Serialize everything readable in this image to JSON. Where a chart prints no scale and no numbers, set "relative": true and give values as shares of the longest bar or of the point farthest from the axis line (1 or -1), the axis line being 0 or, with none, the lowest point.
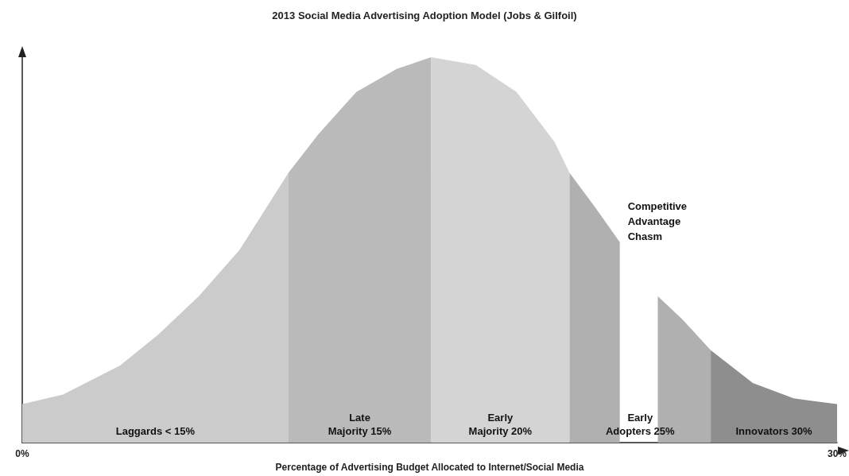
{
  "chart_data": {
    "type": "area",
    "title": "2013 Social Media Advertising Adoption Model (Jobs & Gilfoil)",
    "xlabel": "Percentage of Advertising Budget Allocated to Internet/Social Media",
    "relative": true,
    "legend": false,
    "grid": false,
    "xlim": [
      0,
      30
    ],
    "xticks": [
      {
        "value": 0,
        "label": "0%"
      },
      {
        "value": 30,
        "label": "30%"
      }
    ],
    "series": [
      {
        "name": "Laggards < 15%",
        "color": "#cbcbcb",
        "x": [
          0,
          1.5,
          3.6,
          5,
          6.5,
          8,
          9.8
        ],
        "values": [
          0.1,
          0.125,
          0.2,
          0.28,
          0.38,
          0.5,
          0.7
        ]
      },
      {
        "name": "Late\nMajority 15%",
        "color": "#bababa",
        "x": [
          9.8,
          10.9,
          12.3,
          13.8,
          15.05
        ],
        "values": [
          0.7,
          0.8,
          0.91,
          0.97,
          1
        ]
      },
      {
        "name": "Early\nMajority 20%",
        "color": "#d4d4d4",
        "x": [
          15.05,
          16.7,
          18.2,
          19.6,
          20.15
        ],
        "values": [
          1,
          0.98,
          0.91,
          0.78,
          0.7
        ]
      },
      {
        "name": "Early\nAdopters 25%",
        "color": "#b0b0b0",
        "x": [
          20.15,
          21.1,
          22,
          22.7,
          23.4,
          24.3,
          25.35
        ],
        "values": [
          0.7,
          0.61,
          0.52,
          null,
          0.38,
          0.32,
          0.24
        ]
      },
      {
        "name": "Innovators 30%",
        "color": "#8e8e8e",
        "x": [
          25.35,
          26.9,
          28.4,
          30
        ],
        "values": [
          0.24,
          0.155,
          0.115,
          0.1
        ]
      }
    ],
    "annotations": [
      "Competitive\nAdvantage\nChasm"
    ]
  }
}
